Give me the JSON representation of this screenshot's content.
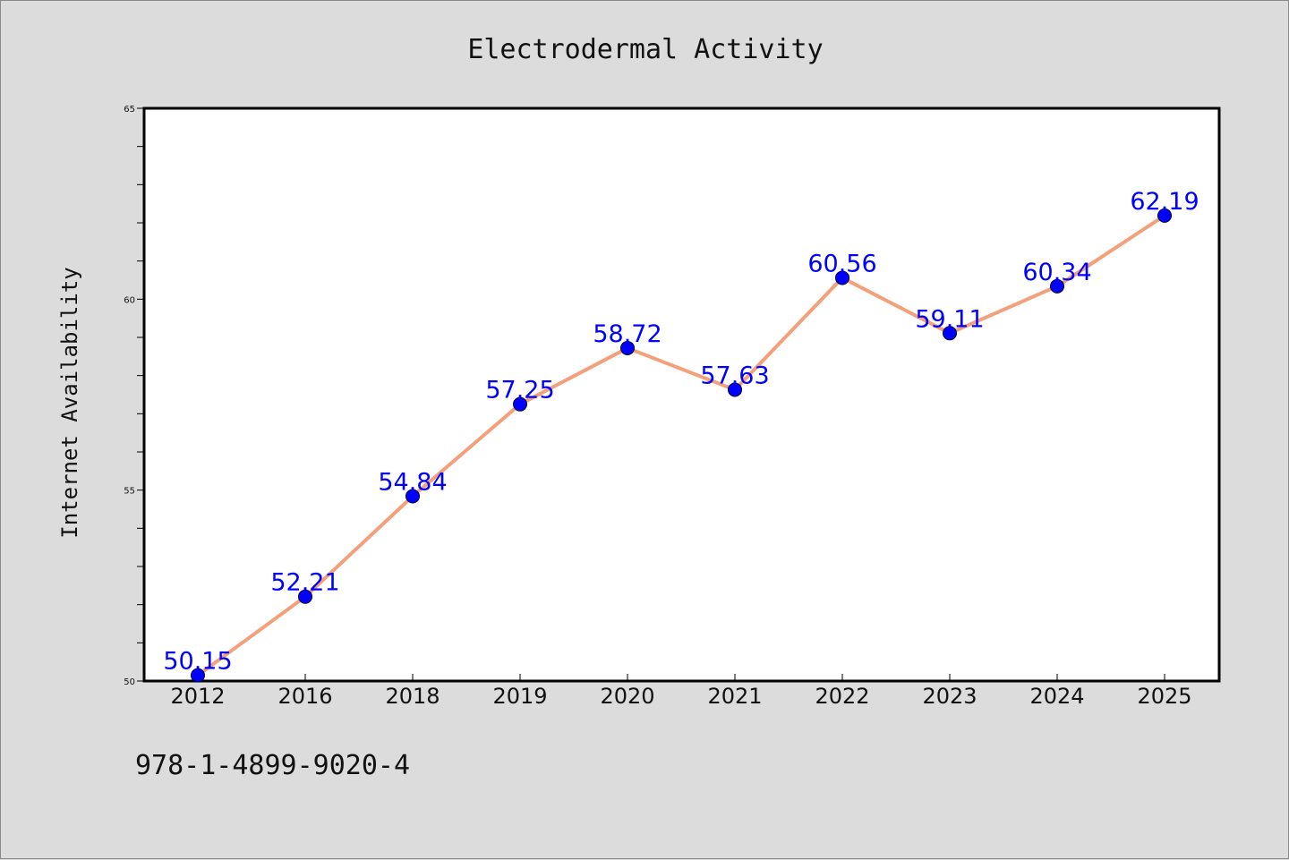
{
  "chart_data": {
    "type": "line",
    "title": "Electrodermal Activity",
    "xlabel": "",
    "ylabel": "Internet Availability",
    "categories": [
      "2012",
      "2016",
      "2018",
      "2019",
      "2020",
      "2021",
      "2022",
      "2023",
      "2024",
      "2025"
    ],
    "series": [
      {
        "values": [
          50.15,
          52.21,
          54.84,
          57.25,
          58.72,
          57.63,
          60.56,
          59.11,
          60.34,
          62.19
        ],
        "line_color": "#f4a07a",
        "marker_color": "#0000ff"
      }
    ],
    "data_labels": [
      "50.15",
      "52.21",
      "54.84",
      "57.25",
      "58.72",
      "57.63",
      "60.56",
      "59.11",
      "60.34",
      "62.19"
    ],
    "ylim": [
      50,
      65
    ],
    "yticks": [
      50,
      55,
      60,
      65
    ],
    "ytick_labels": [
      "50",
      "55",
      "60",
      "65"
    ],
    "grid": false,
    "legend": false
  },
  "footer": {
    "isbn": "978-1-4899-9020-4"
  },
  "colors": {
    "background": "#dcdcdc",
    "plot_background": "#ffffff",
    "frame": "#000000",
    "label_color": "#0000ff",
    "line_color": "#f4a07a",
    "marker_color": "#0000ff"
  }
}
